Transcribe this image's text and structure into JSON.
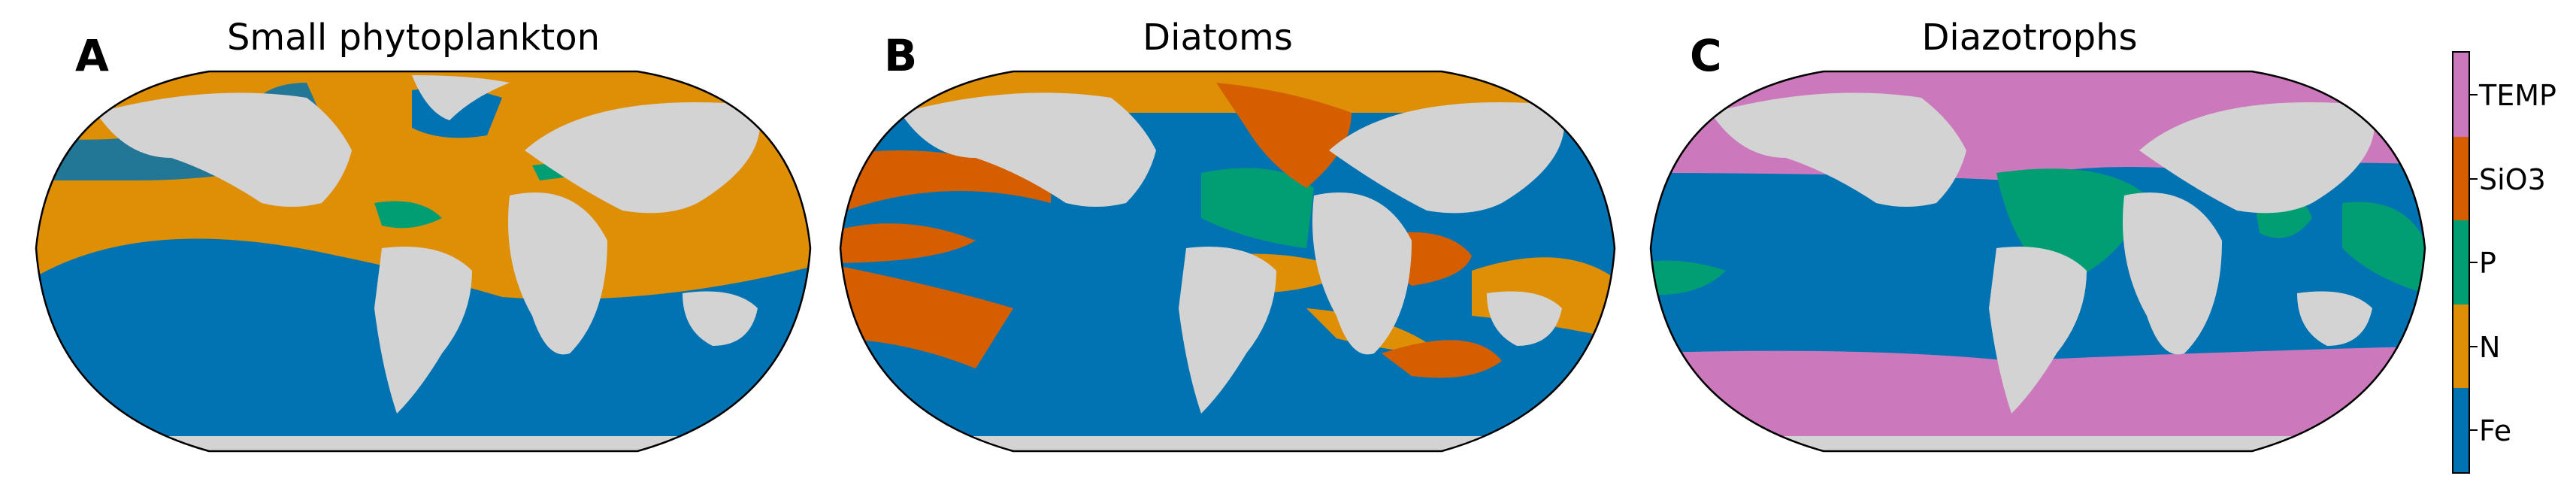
{
  "panels": [
    {
      "letter": "A",
      "title": "Small phytoplankton"
    },
    {
      "letter": "B",
      "title": "Diatoms"
    },
    {
      "letter": "C",
      "title": "Diazotrophs"
    }
  ],
  "legend": {
    "items": [
      {
        "label": "TEMP",
        "color": "#cc78bc"
      },
      {
        "label": "SiO3",
        "color": "#d55e00"
      },
      {
        "label": "P",
        "color": "#029e73"
      },
      {
        "label": "N",
        "color": "#de8f05"
      },
      {
        "label": "Fe",
        "color": "#0173b2"
      }
    ]
  },
  "colors": {
    "land": "#d3d3d3",
    "outline": "#000000"
  }
}
